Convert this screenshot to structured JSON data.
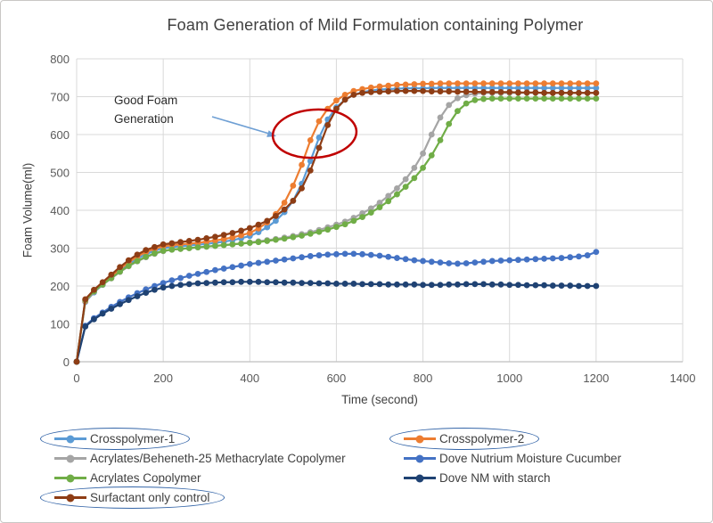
{
  "chart": {
    "title": "Foam Generation of Mild  Formulation containing Polymer",
    "x_axis": {
      "label": "Time (second)",
      "min": 0,
      "max": 1400,
      "ticks": [
        0,
        200,
        400,
        600,
        800,
        1000,
        1200,
        1400
      ]
    },
    "y_axis": {
      "label": "Foam Volume(ml)",
      "min": 0,
      "max": 800,
      "ticks": [
        0,
        100,
        200,
        300,
        400,
        500,
        600,
        700,
        800
      ]
    },
    "annotation": {
      "text": "Good Foam Generation",
      "ellipse_color": "#c00000",
      "arrow_color": "#6e9fd4",
      "legend_circle_color": "#3465a8"
    },
    "colors": {
      "gridline": "#d9d9d9",
      "axis_line": "#bfbfbf",
      "title_text": "#3f3f3f",
      "tick_text": "#595959"
    }
  },
  "chart_data": {
    "type": "line",
    "title": "Foam Generation of Mild  Formulation containing Polymer",
    "xlabel": "Time (second)",
    "ylabel": "Foam Volume(ml)",
    "xlim": [
      0,
      1400
    ],
    "ylim": [
      0,
      800
    ],
    "grid": true,
    "legend_position": "bottom",
    "annotated_region": "red ellipse around steep rise of Crosspolymer-1, Crosspolymer-2 and Surfactant only control near 500-620 s labeled Good Foam Generation",
    "x": [
      0,
      20,
      40,
      60,
      80,
      100,
      120,
      140,
      160,
      180,
      200,
      220,
      240,
      260,
      280,
      300,
      320,
      340,
      360,
      380,
      400,
      420,
      440,
      460,
      480,
      500,
      520,
      540,
      560,
      580,
      600,
      620,
      640,
      660,
      680,
      700,
      720,
      740,
      760,
      780,
      800,
      820,
      840,
      860,
      880,
      900,
      920,
      940,
      960,
      980,
      1000,
      1020,
      1040,
      1060,
      1080,
      1100,
      1120,
      1140,
      1160,
      1180,
      1200
    ],
    "series": [
      {
        "name": "Crosspolymer-1",
        "color": "#5b9bd5",
        "circled": true,
        "values": [
          0,
          158,
          183,
          203,
          222,
          240,
          257,
          272,
          284,
          293,
          300,
          303,
          305,
          307,
          309,
          311,
          314,
          317,
          321,
          326,
          332,
          342,
          355,
          372,
          395,
          425,
          470,
          530,
          592,
          640,
          672,
          692,
          705,
          712,
          716,
          719,
          720,
          721,
          722,
          722,
          722,
          723,
          723,
          723,
          723,
          723,
          723,
          723,
          723,
          723,
          723,
          723,
          723,
          723,
          723,
          723,
          723,
          723,
          723,
          723,
          723
        ]
      },
      {
        "name": "Crosspolymer-2",
        "color": "#ed7d31",
        "circled": true,
        "values": [
          0,
          160,
          185,
          205,
          225,
          245,
          262,
          278,
          290,
          298,
          305,
          308,
          310,
          312,
          314,
          317,
          320,
          324,
          328,
          334,
          340,
          352,
          368,
          390,
          420,
          465,
          520,
          585,
          635,
          668,
          690,
          705,
          715,
          720,
          724,
          727,
          729,
          731,
          732,
          733,
          734,
          734,
          735,
          735,
          735,
          735,
          735,
          735,
          735,
          735,
          735,
          735,
          735,
          735,
          735,
          735,
          735,
          735,
          735,
          735,
          735
        ]
      },
      {
        "name": "Acrylates/Beheneth-25 Methacrylate Copolymer",
        "color": "#a5a5a5",
        "circled": false,
        "values": [
          0,
          162,
          185,
          203,
          220,
          237,
          252,
          265,
          276,
          285,
          292,
          296,
          298,
          300,
          302,
          304,
          306,
          308,
          310,
          312,
          315,
          318,
          321,
          324,
          328,
          332,
          337,
          342,
          348,
          355,
          362,
          370,
          380,
          392,
          405,
          420,
          438,
          458,
          482,
          512,
          550,
          600,
          645,
          678,
          696,
          704,
          708,
          710,
          710,
          710,
          710,
          710,
          710,
          710,
          710,
          710,
          710,
          710,
          710,
          710,
          710
        ]
      },
      {
        "name": "Dove Nutrium Moisture Cucumber",
        "color": "#4472c4",
        "circled": false,
        "values": [
          0,
          95,
          115,
          130,
          145,
          158,
          170,
          181,
          191,
          200,
          208,
          215,
          221,
          227,
          232,
          237,
          242,
          246,
          250,
          254,
          258,
          261,
          264,
          267,
          270,
          273,
          276,
          279,
          281,
          283,
          284,
          285,
          285,
          284,
          282,
          280,
          277,
          274,
          271,
          268,
          266,
          264,
          262,
          260,
          259,
          260,
          262,
          264,
          266,
          267,
          268,
          269,
          270,
          271,
          272,
          273,
          274,
          276,
          278,
          281,
          290
        ]
      },
      {
        "name": "Acrylates Copolymer",
        "color": "#70ad47",
        "circled": false,
        "values": [
          0,
          163,
          186,
          204,
          221,
          238,
          253,
          266,
          277,
          286,
          293,
          296,
          298,
          300,
          302,
          304,
          306,
          308,
          310,
          312,
          314,
          316,
          319,
          322,
          325,
          329,
          333,
          338,
          343,
          349,
          356,
          363,
          372,
          382,
          394,
          408,
          424,
          442,
          462,
          485,
          512,
          545,
          585,
          628,
          662,
          682,
          691,
          694,
          695,
          695,
          695,
          695,
          695,
          695,
          695,
          695,
          695,
          695,
          695,
          695,
          695
        ]
      },
      {
        "name": "Dove NM with starch",
        "color": "#1f4273",
        "circled": false,
        "values": [
          0,
          93,
          112,
          127,
          140,
          152,
          163,
          173,
          182,
          190,
          196,
          200,
          203,
          205,
          207,
          208,
          209,
          210,
          210,
          211,
          211,
          211,
          210,
          210,
          209,
          209,
          208,
          208,
          207,
          207,
          206,
          206,
          206,
          205,
          205,
          205,
          204,
          204,
          204,
          204,
          203,
          203,
          203,
          204,
          204,
          205,
          205,
          205,
          204,
          204,
          203,
          203,
          202,
          202,
          202,
          201,
          201,
          201,
          200,
          200,
          200
        ]
      },
      {
        "name": "Surfactant only control",
        "color": "#8e3d15",
        "circled": true,
        "values": [
          0,
          165,
          190,
          210,
          230,
          250,
          268,
          283,
          295,
          303,
          310,
          313,
          316,
          319,
          322,
          326,
          330,
          335,
          340,
          346,
          353,
          362,
          372,
          385,
          402,
          425,
          458,
          505,
          565,
          625,
          668,
          692,
          705,
          710,
          712,
          713,
          714,
          715,
          715,
          715,
          715,
          714,
          714,
          714,
          713,
          713,
          713,
          712,
          712,
          712,
          712,
          711,
          711,
          711,
          710,
          710,
          710,
          710,
          710,
          710,
          710
        ]
      }
    ]
  }
}
